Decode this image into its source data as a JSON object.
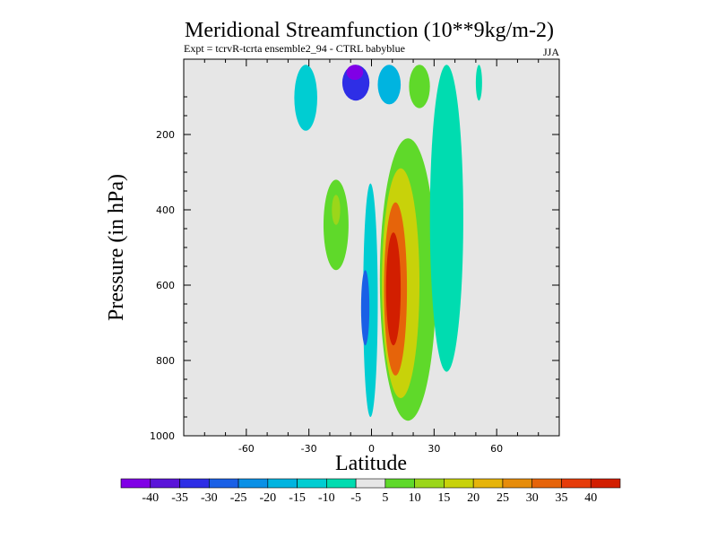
{
  "chart_data": {
    "type": "heatmap",
    "title": "Meridional Streamfunction (10**9kg/m-2)",
    "subtitle": "Expt = tcrvR-tcrta ensemble2_94 - CTRL babyblue",
    "season_label": "JJA",
    "xlabel": "Latitude",
    "ylabel": "Pressure (in hPa)",
    "xlim": [
      -90,
      90
    ],
    "ylim": [
      1000,
      0
    ],
    "xticks": [
      {
        "value": -60,
        "label": "-60"
      },
      {
        "value": -30,
        "label": "-30"
      },
      {
        "value": 0,
        "label": "0"
      },
      {
        "value": 30,
        "label": "30"
      },
      {
        "value": 60,
        "label": "60"
      }
    ],
    "yticks": [
      {
        "value": 200,
        "label": "200"
      },
      {
        "value": 400,
        "label": "400"
      },
      {
        "value": 600,
        "label": "600"
      },
      {
        "value": 800,
        "label": "800"
      },
      {
        "value": 1000,
        "label": "1000"
      }
    ],
    "background_color": "#e6e6e6",
    "colorbar": {
      "labels": [
        "-40",
        "-35",
        "-30",
        "-25",
        "-20",
        "-15",
        "-10",
        "-5",
        "5",
        "10",
        "15",
        "20",
        "25",
        "30",
        "35",
        "40"
      ],
      "colors": [
        "#8000e6",
        "#5a14d9",
        "#2e2ee6",
        "#1a60e6",
        "#0a90e6",
        "#00b4e0",
        "#00cdd2",
        "#00dcb0",
        "#e6e6e6",
        "#5fd92a",
        "#9bd61a",
        "#c8d20a",
        "#e6b40a",
        "#e68c0a",
        "#e6640a",
        "#e63c0a",
        "#d21e00"
      ]
    },
    "regions": [
      {
        "value": -12,
        "lat": [
          -37,
          -26
        ],
        "p": [
          15,
          190
        ]
      },
      {
        "value": -32,
        "lat": [
          -14,
          -1
        ],
        "p": [
          15,
          110
        ]
      },
      {
        "value": -45,
        "lat": [
          -12,
          -4
        ],
        "p": [
          15,
          55
        ]
      },
      {
        "value": -14,
        "lat": [
          -4,
          3
        ],
        "p": [
          330,
          950
        ]
      },
      {
        "value": -28,
        "lat": [
          -5,
          -1
        ],
        "p": [
          560,
          760
        ]
      },
      {
        "value": -16,
        "lat": [
          3,
          14
        ],
        "p": [
          15,
          120
        ]
      },
      {
        "value": 8,
        "lat": [
          -23,
          -11
        ],
        "p": [
          320,
          560
        ]
      },
      {
        "value": 12,
        "lat": [
          -19,
          -15
        ],
        "p": [
          360,
          440
        ]
      },
      {
        "value": 8,
        "lat": [
          4,
          31
        ],
        "p": [
          210,
          960
        ]
      },
      {
        "value": 18,
        "lat": [
          5,
          23
        ],
        "p": [
          290,
          900
        ]
      },
      {
        "value": 30,
        "lat": [
          6,
          17
        ],
        "p": [
          380,
          840
        ]
      },
      {
        "value": 40,
        "lat": [
          7,
          14
        ],
        "p": [
          460,
          760
        ]
      },
      {
        "value": 8,
        "lat": [
          18,
          28
        ],
        "p": [
          15,
          130
        ]
      },
      {
        "value": -7,
        "lat": [
          28,
          44
        ],
        "p": [
          15,
          830
        ]
      },
      {
        "value": -7,
        "lat": [
          50,
          53
        ],
        "p": [
          15,
          110
        ]
      }
    ]
  }
}
